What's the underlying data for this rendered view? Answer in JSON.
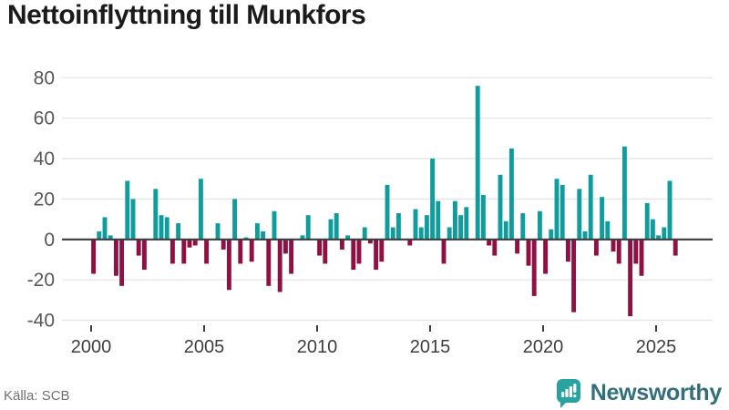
{
  "title": "Nettoinflyttning till Munkfors",
  "source": {
    "label": "Källa: SCB"
  },
  "brand": {
    "name": "Newsworthy",
    "icon": "newsworthy-speech-bubble-barchart-icon"
  },
  "colors": {
    "positive": "#109c9d",
    "negative": "#8f1043",
    "grid": "#e4e4e4",
    "zero_line": "#3d3d3d",
    "tick_mark": "#3d3d3d",
    "y_label": "#575757",
    "x_label": "#3f3f3f",
    "title": "#1b1b1b",
    "source": "#707070",
    "brand_text": "#336f7b",
    "brand_bubble": "#2aa2a0",
    "background": "#ffffff"
  },
  "chart_data": {
    "type": "bar",
    "title": "Nettoinflyttning till Munkfors",
    "xlabel": "",
    "ylabel": "",
    "frequency": "quarterly",
    "start_period": "2000 Q1",
    "end_period": "2025 Q4",
    "ylim": [
      -40,
      80
    ],
    "yticks": [
      -40,
      -20,
      0,
      20,
      40,
      60,
      80
    ],
    "xtick_years": [
      2000,
      2005,
      2010,
      2015,
      2020,
      2025
    ],
    "grid": true,
    "legend": false,
    "zero_values_drawn_as_gaps": true,
    "series": [
      {
        "year": 2000,
        "q": [
          -17,
          4,
          11,
          2
        ]
      },
      {
        "year": 2001,
        "q": [
          -18,
          -23,
          29,
          20
        ]
      },
      {
        "year": 2002,
        "q": [
          -8,
          -15,
          0,
          25
        ]
      },
      {
        "year": 2003,
        "q": [
          12,
          11,
          -12,
          8
        ]
      },
      {
        "year": 2004,
        "q": [
          -12,
          -4,
          -3,
          30
        ]
      },
      {
        "year": 2005,
        "q": [
          -12,
          0,
          8,
          -5
        ]
      },
      {
        "year": 2006,
        "q": [
          -25,
          20,
          -12,
          1
        ]
      },
      {
        "year": 2007,
        "q": [
          -11,
          8,
          4,
          -23
        ]
      },
      {
        "year": 2008,
        "q": [
          14,
          -26,
          -7,
          -17
        ]
      },
      {
        "year": 2009,
        "q": [
          0,
          2,
          12,
          0
        ]
      },
      {
        "year": 2010,
        "q": [
          -8,
          -12,
          10,
          13
        ]
      },
      {
        "year": 2011,
        "q": [
          -5,
          2,
          -15,
          -12
        ]
      },
      {
        "year": 2012,
        "q": [
          6,
          -2,
          -15,
          -11
        ]
      },
      {
        "year": 2013,
        "q": [
          27,
          6,
          13,
          0
        ]
      },
      {
        "year": 2014,
        "q": [
          -3,
          15,
          6,
          12
        ]
      },
      {
        "year": 2015,
        "q": [
          40,
          19,
          -12,
          6
        ]
      },
      {
        "year": 2016,
        "q": [
          19,
          12,
          16,
          0
        ]
      },
      {
        "year": 2017,
        "q": [
          76,
          22,
          -3,
          -8
        ]
      },
      {
        "year": 2018,
        "q": [
          32,
          9,
          45,
          -7
        ]
      },
      {
        "year": 2019,
        "q": [
          13,
          -13,
          -28,
          14
        ]
      },
      {
        "year": 2020,
        "q": [
          -17,
          5,
          30,
          27
        ]
      },
      {
        "year": 2021,
        "q": [
          -11,
          -36,
          25,
          4
        ]
      },
      {
        "year": 2022,
        "q": [
          32,
          -8,
          21,
          9
        ]
      },
      {
        "year": 2023,
        "q": [
          -6,
          -12,
          46,
          -38
        ]
      },
      {
        "year": 2024,
        "q": [
          -12,
          -18,
          18,
          10
        ]
      },
      {
        "year": 2025,
        "q": [
          2,
          6,
          29,
          -8
        ]
      }
    ]
  }
}
